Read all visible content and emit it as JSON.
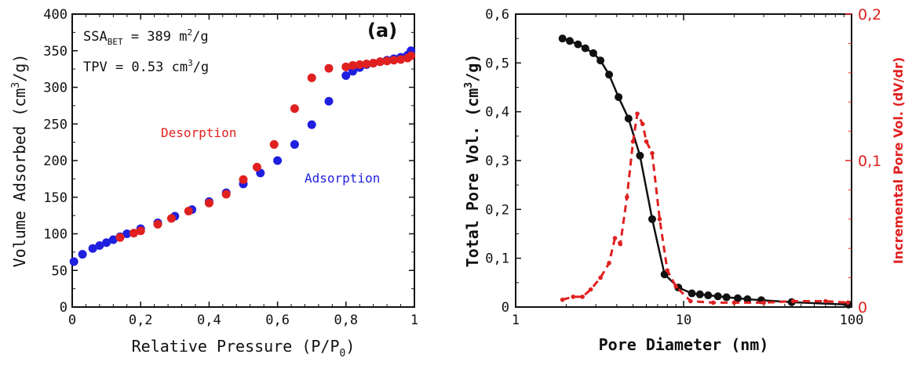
{
  "chart_data": [
    {
      "type": "scatter",
      "panel_label": "(a)",
      "xlabel": "Relative Pressure (P/P",
      "xlabel_sub": "0",
      "xlabel_end": ")",
      "ylabel": "Volume Adsorbed (cm",
      "ylabel_sup": "3",
      "ylabel_end": "/g)",
      "xlim": [
        0,
        1
      ],
      "ylim": [
        0,
        400
      ],
      "x_ticks": [
        0,
        0.2,
        0.4,
        0.6,
        0.8,
        1
      ],
      "x_tick_labels": [
        "0",
        "0,2",
        "0,4",
        "0,6",
        "0,8",
        "1"
      ],
      "y_ticks": [
        0,
        50,
        100,
        150,
        200,
        250,
        300,
        350,
        400
      ],
      "y_tick_labels": [
        "0",
        "50",
        "100",
        "150",
        "200",
        "250",
        "300",
        "350",
        "400"
      ],
      "annotations": {
        "ssa": {
          "prefix": "SSA",
          "sub": "BET",
          "value": " = 389 m",
          "sup": "2",
          "end": "/g"
        },
        "tpv": {
          "prefix": "TPV = 0.53 cm",
          "sup": "3",
          "end": "/g"
        }
      },
      "series": [
        {
          "name": "Adsorption",
          "color": "#1f1fe0",
          "x": [
            0.005,
            0.03,
            0.06,
            0.08,
            0.1,
            0.12,
            0.14,
            0.16,
            0.2,
            0.25,
            0.3,
            0.35,
            0.4,
            0.45,
            0.5,
            0.55,
            0.6,
            0.65,
            0.7,
            0.75,
            0.8,
            0.82,
            0.84,
            0.86,
            0.88,
            0.9,
            0.92,
            0.94,
            0.96,
            0.98,
            0.99
          ],
          "y": [
            62,
            72,
            80,
            84,
            88,
            92,
            96,
            100,
            107,
            115,
            124,
            133,
            144,
            156,
            168,
            183,
            200,
            222,
            249,
            281,
            316,
            322,
            327,
            331,
            333,
            335,
            337,
            339,
            341,
            344,
            350
          ]
        },
        {
          "name": "Desorption",
          "color": "#e02020",
          "x": [
            0.14,
            0.18,
            0.2,
            0.25,
            0.29,
            0.34,
            0.4,
            0.45,
            0.5,
            0.54,
            0.59,
            0.65,
            0.7,
            0.75,
            0.8,
            0.82,
            0.84,
            0.86,
            0.88,
            0.9,
            0.92,
            0.94,
            0.96,
            0.98,
            0.99
          ],
          "y": [
            95,
            101,
            104,
            113,
            121,
            131,
            142,
            154,
            174,
            191,
            222,
            271,
            313,
            326,
            328,
            330,
            331,
            332,
            333,
            335,
            336,
            337,
            338,
            340,
            343
          ]
        }
      ]
    },
    {
      "type": "line",
      "xlabel": "Pore Diameter (nm)",
      "ylabel": "Total Pore Vol. (cm",
      "ylabel_sup": "3",
      "ylabel_end": "/g)",
      "y2label": "Incremental Pore Vol. (dV/dr)",
      "x_scale": "log",
      "xlim": [
        1,
        100
      ],
      "ylim": [
        0,
        0.6
      ],
      "y2lim": [
        0,
        0.2
      ],
      "x_ticks": [
        1,
        10,
        100
      ],
      "x_tick_labels": [
        "1",
        "10",
        "100"
      ],
      "y_ticks": [
        0,
        0.1,
        0.2,
        0.3,
        0.4,
        0.5,
        0.6
      ],
      "y_tick_labels": [
        "0",
        "0,1",
        "0,2",
        "0,3",
        "0,4",
        "0,5",
        "0,6"
      ],
      "y2_ticks": [
        0,
        0.1,
        0.2
      ],
      "y2_tick_labels": [
        "0",
        "0,1",
        "0,2"
      ],
      "series": [
        {
          "name": "",
          "axis": "left",
          "color": "#111111",
          "style": "solid-markers",
          "x": [
            1.9,
            2.1,
            2.35,
            2.6,
            2.9,
            3.2,
            3.6,
            4.1,
            4.7,
            5.5,
            6.5,
            7.7,
            9.3,
            11.2,
            12.5,
            14,
            16,
            18,
            21,
            24,
            29,
            44,
            96
          ],
          "y": [
            0.55,
            0.545,
            0.538,
            0.53,
            0.52,
            0.505,
            0.476,
            0.43,
            0.386,
            0.31,
            0.18,
            0.067,
            0.04,
            0.028,
            0.026,
            0.024,
            0.022,
            0.02,
            0.018,
            0.016,
            0.014,
            0.01,
            0.005
          ]
        },
        {
          "name": "",
          "axis": "right",
          "color": "#e02020",
          "style": "dashed-markers",
          "x": [
            1.9,
            2.2,
            2.5,
            2.8,
            3.2,
            3.6,
            3.9,
            4.2,
            4.6,
            5.0,
            5.3,
            5.7,
            6.0,
            6.5,
            7.2,
            8.0,
            9.0,
            11,
            15,
            20,
            30,
            45,
            70,
            95
          ],
          "y": [
            0.005,
            0.007,
            0.007,
            0.012,
            0.02,
            0.03,
            0.047,
            0.043,
            0.075,
            0.113,
            0.132,
            0.125,
            0.113,
            0.105,
            0.06,
            0.025,
            0.014,
            0.004,
            0.003,
            0.003,
            0.003,
            0.004,
            0.004,
            0.003
          ]
        }
      ]
    }
  ]
}
